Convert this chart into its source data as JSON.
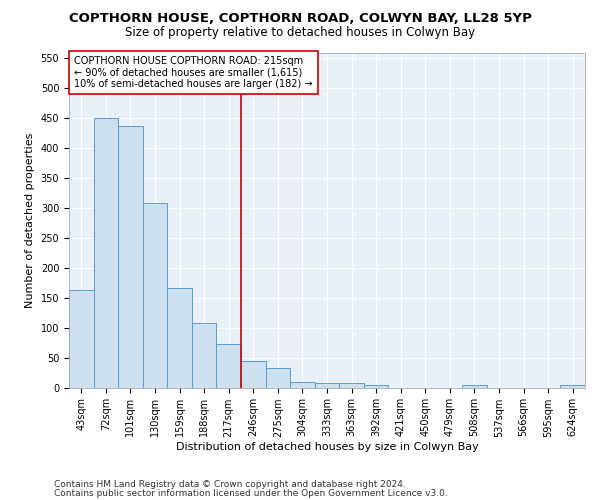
{
  "title": "COPTHORN HOUSE, COPTHORN ROAD, COLWYN BAY, LL28 5YP",
  "subtitle": "Size of property relative to detached houses in Colwyn Bay",
  "xlabel": "Distribution of detached houses by size in Colwyn Bay",
  "ylabel": "Number of detached properties",
  "footer1": "Contains HM Land Registry data © Crown copyright and database right 2024.",
  "footer2": "Contains public sector information licensed under the Open Government Licence v3.0.",
  "categories": [
    "43sqm",
    "72sqm",
    "101sqm",
    "130sqm",
    "159sqm",
    "188sqm",
    "217sqm",
    "246sqm",
    "275sqm",
    "304sqm",
    "333sqm",
    "363sqm",
    "392sqm",
    "421sqm",
    "450sqm",
    "479sqm",
    "508sqm",
    "537sqm",
    "566sqm",
    "595sqm",
    "624sqm"
  ],
  "values": [
    163,
    450,
    437,
    308,
    167,
    107,
    73,
    45,
    33,
    10,
    8,
    8,
    5,
    0,
    0,
    0,
    4,
    0,
    0,
    0,
    5
  ],
  "bar_color": "#cce0f0",
  "bar_edge_color": "#5b9bd5",
  "vline_x": 6.5,
  "vline_color": "#cc0000",
  "annotation_text": "COPTHORN HOUSE COPTHORN ROAD: 215sqm\n← 90% of detached houses are smaller (1,615)\n10% of semi-detached houses are larger (182) →",
  "annotation_box_color": "#ffffff",
  "annotation_box_edge": "#cc0000",
  "ylim": [
    0,
    560
  ],
  "yticks": [
    0,
    50,
    100,
    150,
    200,
    250,
    300,
    350,
    400,
    450,
    500,
    550
  ],
  "bg_color": "#e8f0f8",
  "grid_color": "#ffffff",
  "title_fontsize": 9.5,
  "subtitle_fontsize": 8.5,
  "axis_label_fontsize": 8,
  "tick_fontsize": 7,
  "annotation_fontsize": 7,
  "footer_fontsize": 6.5
}
